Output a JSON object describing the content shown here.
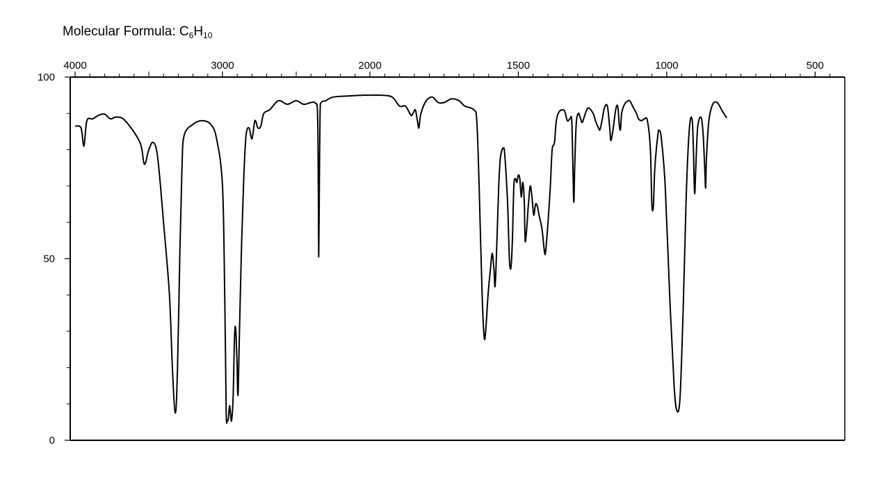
{
  "formula": {
    "prefix": "Molecular Formula: ",
    "element1": "C",
    "count1": "6",
    "element2": "H",
    "count2": "10"
  },
  "chart_data": {
    "type": "line",
    "title": "",
    "xlabel": "",
    "ylabel": "",
    "xlim": [
      4000,
      400
    ],
    "ylim": [
      0,
      100
    ],
    "x_reversed": true,
    "x_ticks": [
      4000,
      3000,
      2000,
      1500,
      1000,
      500
    ],
    "x_tick_labels": [
      "4000",
      "3000",
      "2000",
      "1500",
      "1000",
      "500"
    ],
    "y_ticks": [
      0,
      50,
      100
    ],
    "y_tick_labels": [
      "0",
      "50",
      "100"
    ],
    "x_scale_note": "split scale: 4000-2000 and 2000-400 at double density",
    "grid": false,
    "series": [
      {
        "name": "",
        "color": "#000000",
        "points": [
          [
            4000,
            86.5
          ],
          [
            3960,
            86
          ],
          [
            3940,
            81
          ],
          [
            3920,
            88
          ],
          [
            3880,
            88.5
          ],
          [
            3840,
            89.5
          ],
          [
            3800,
            89.8
          ],
          [
            3760,
            88.5
          ],
          [
            3720,
            89
          ],
          [
            3660,
            88
          ],
          [
            3560,
            82
          ],
          [
            3530,
            76
          ],
          [
            3500,
            80
          ],
          [
            3470,
            82
          ],
          [
            3440,
            78
          ],
          [
            3400,
            60
          ],
          [
            3360,
            40
          ],
          [
            3340,
            20
          ],
          [
            3320,
            7.5
          ],
          [
            3305,
            20
          ],
          [
            3290,
            50
          ],
          [
            3275,
            75
          ],
          [
            3260,
            84
          ],
          [
            3200,
            87
          ],
          [
            3140,
            88
          ],
          [
            3080,
            87
          ],
          [
            3040,
            83
          ],
          [
            3000,
            70
          ],
          [
            2985,
            40
          ],
          [
            2975,
            8
          ],
          [
            2968,
            5.5
          ],
          [
            2960,
            6
          ],
          [
            2952,
            9.5
          ],
          [
            2945,
            7
          ],
          [
            2938,
            5.5
          ],
          [
            2928,
            12
          ],
          [
            2918,
            29
          ],
          [
            2910,
            30.5
          ],
          [
            2902,
            22
          ],
          [
            2895,
            12.5
          ],
          [
            2885,
            30
          ],
          [
            2870,
            55
          ],
          [
            2855,
            73
          ],
          [
            2840,
            84
          ],
          [
            2820,
            86
          ],
          [
            2800,
            83
          ],
          [
            2780,
            88
          ],
          [
            2760,
            86
          ],
          [
            2740,
            86.5
          ],
          [
            2720,
            90
          ],
          [
            2680,
            91
          ],
          [
            2620,
            93.5
          ],
          [
            2560,
            92.5
          ],
          [
            2500,
            93.5
          ],
          [
            2450,
            92.5
          ],
          [
            2400,
            93
          ],
          [
            2370,
            92.8
          ],
          [
            2355,
            90
          ],
          [
            2350,
            70
          ],
          [
            2347,
            50.5
          ],
          [
            2343,
            70
          ],
          [
            2338,
            90
          ],
          [
            2330,
            93
          ],
          [
            2300,
            93.5
          ],
          [
            2250,
            94.5
          ],
          [
            2150,
            94.8
          ],
          [
            2050,
            95
          ],
          [
            2000,
            95
          ],
          [
            1960,
            95
          ],
          [
            1925,
            94.5
          ],
          [
            1900,
            92
          ],
          [
            1880,
            92
          ],
          [
            1862,
            89.5
          ],
          [
            1855,
            90
          ],
          [
            1847,
            91
          ],
          [
            1840,
            88
          ],
          [
            1835,
            86
          ],
          [
            1828,
            90
          ],
          [
            1810,
            93.5
          ],
          [
            1790,
            94.5
          ],
          [
            1770,
            93
          ],
          [
            1750,
            93
          ],
          [
            1725,
            94
          ],
          [
            1700,
            93.5
          ],
          [
            1680,
            92
          ],
          [
            1650,
            91
          ],
          [
            1640,
            88
          ],
          [
            1632,
            70
          ],
          [
            1622,
            40
          ],
          [
            1615,
            28.5
          ],
          [
            1610,
            30
          ],
          [
            1602,
            40
          ],
          [
            1594,
            47
          ],
          [
            1588,
            51.5
          ],
          [
            1582,
            47
          ],
          [
            1578,
            42.5
          ],
          [
            1572,
            55
          ],
          [
            1566,
            70
          ],
          [
            1560,
            78
          ],
          [
            1550,
            80.5
          ],
          [
            1545,
            78
          ],
          [
            1536,
            65
          ],
          [
            1530,
            50
          ],
          [
            1525,
            47.5
          ],
          [
            1520,
            55
          ],
          [
            1515,
            70
          ],
          [
            1510,
            72
          ],
          [
            1505,
            71
          ],
          [
            1500,
            73
          ],
          [
            1495,
            72
          ],
          [
            1490,
            67
          ],
          [
            1485,
            71
          ],
          [
            1480,
            66
          ],
          [
            1477,
            55
          ],
          [
            1472,
            58
          ],
          [
            1466,
            65
          ],
          [
            1460,
            70
          ],
          [
            1454,
            67
          ],
          [
            1448,
            62
          ],
          [
            1442,
            65
          ],
          [
            1436,
            64.5
          ],
          [
            1430,
            62
          ],
          [
            1420,
            58
          ],
          [
            1412,
            52
          ],
          [
            1408,
            52
          ],
          [
            1400,
            60
          ],
          [
            1392,
            70
          ],
          [
            1386,
            80
          ],
          [
            1378,
            82
          ],
          [
            1372,
            88
          ],
          [
            1362,
            90.5
          ],
          [
            1345,
            90.8
          ],
          [
            1335,
            88
          ],
          [
            1326,
            88.5
          ],
          [
            1320,
            88
          ],
          [
            1316,
            75
          ],
          [
            1313,
            65.5
          ],
          [
            1310,
            75
          ],
          [
            1305,
            87
          ],
          [
            1298,
            90
          ],
          [
            1292,
            89
          ],
          [
            1285,
            87.5
          ],
          [
            1278,
            89
          ],
          [
            1265,
            91.5
          ],
          [
            1248,
            90
          ],
          [
            1240,
            88
          ],
          [
            1230,
            86
          ],
          [
            1225,
            85.5
          ],
          [
            1218,
            88
          ],
          [
            1210,
            91.5
          ],
          [
            1200,
            92
          ],
          [
            1192,
            86
          ],
          [
            1188,
            82.5
          ],
          [
            1180,
            86
          ],
          [
            1172,
            91
          ],
          [
            1165,
            92
          ],
          [
            1160,
            87
          ],
          [
            1156,
            85.5
          ],
          [
            1152,
            90
          ],
          [
            1145,
            92
          ],
          [
            1138,
            93
          ],
          [
            1125,
            93.5
          ],
          [
            1115,
            92
          ],
          [
            1102,
            90
          ],
          [
            1095,
            88.5
          ],
          [
            1085,
            88
          ],
          [
            1075,
            88.5
          ],
          [
            1065,
            88
          ],
          [
            1055,
            80
          ],
          [
            1050,
            65
          ],
          [
            1045,
            64.5
          ],
          [
            1040,
            75
          ],
          [
            1030,
            84
          ],
          [
            1025,
            85.3
          ],
          [
            1018,
            83
          ],
          [
            1005,
            70
          ],
          [
            990,
            40
          ],
          [
            975,
            15
          ],
          [
            965,
            8
          ],
          [
            955,
            12
          ],
          [
            945,
            35
          ],
          [
            935,
            65
          ],
          [
            928,
            80
          ],
          [
            921,
            88
          ],
          [
            914,
            88
          ],
          [
            910,
            80
          ],
          [
            906,
            68
          ],
          [
            902,
            75
          ],
          [
            896,
            86
          ],
          [
            885,
            89
          ],
          [
            878,
            85
          ],
          [
            872,
            75
          ],
          [
            869,
            69.5
          ],
          [
            866,
            78
          ],
          [
            858,
            88
          ],
          [
            845,
            92.5
          ],
          [
            830,
            93
          ],
          [
            815,
            91
          ],
          [
            800,
            89
          ],
          [
            800,
            89.2
          ]
        ]
      }
    ]
  }
}
